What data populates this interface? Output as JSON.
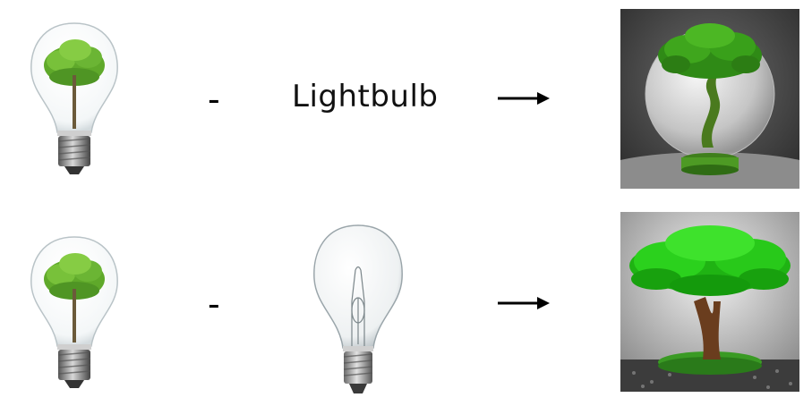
{
  "rows": [
    {
      "source_image": "lightbulb-with-tree-inside",
      "operator": "-",
      "subtrahend": {
        "kind": "text",
        "text": "Lightbulb"
      },
      "arrow": "right-arrow",
      "result_image": "tree-in-glass-sphere"
    },
    {
      "source_image": "lightbulb-with-tree-inside",
      "operator": "-",
      "subtrahend": {
        "kind": "image",
        "image": "plain-incandescent-lightbulb"
      },
      "arrow": "right-arrow",
      "result_image": "tree-on-grass-island"
    }
  ],
  "colors": {
    "tree_green": "#3f9a1e",
    "bright_green": "#2fd11d",
    "bulb_base": "#8a8a8a",
    "result1_bg": "#3a3a3a",
    "result2_bg": "#cfcfcf"
  }
}
